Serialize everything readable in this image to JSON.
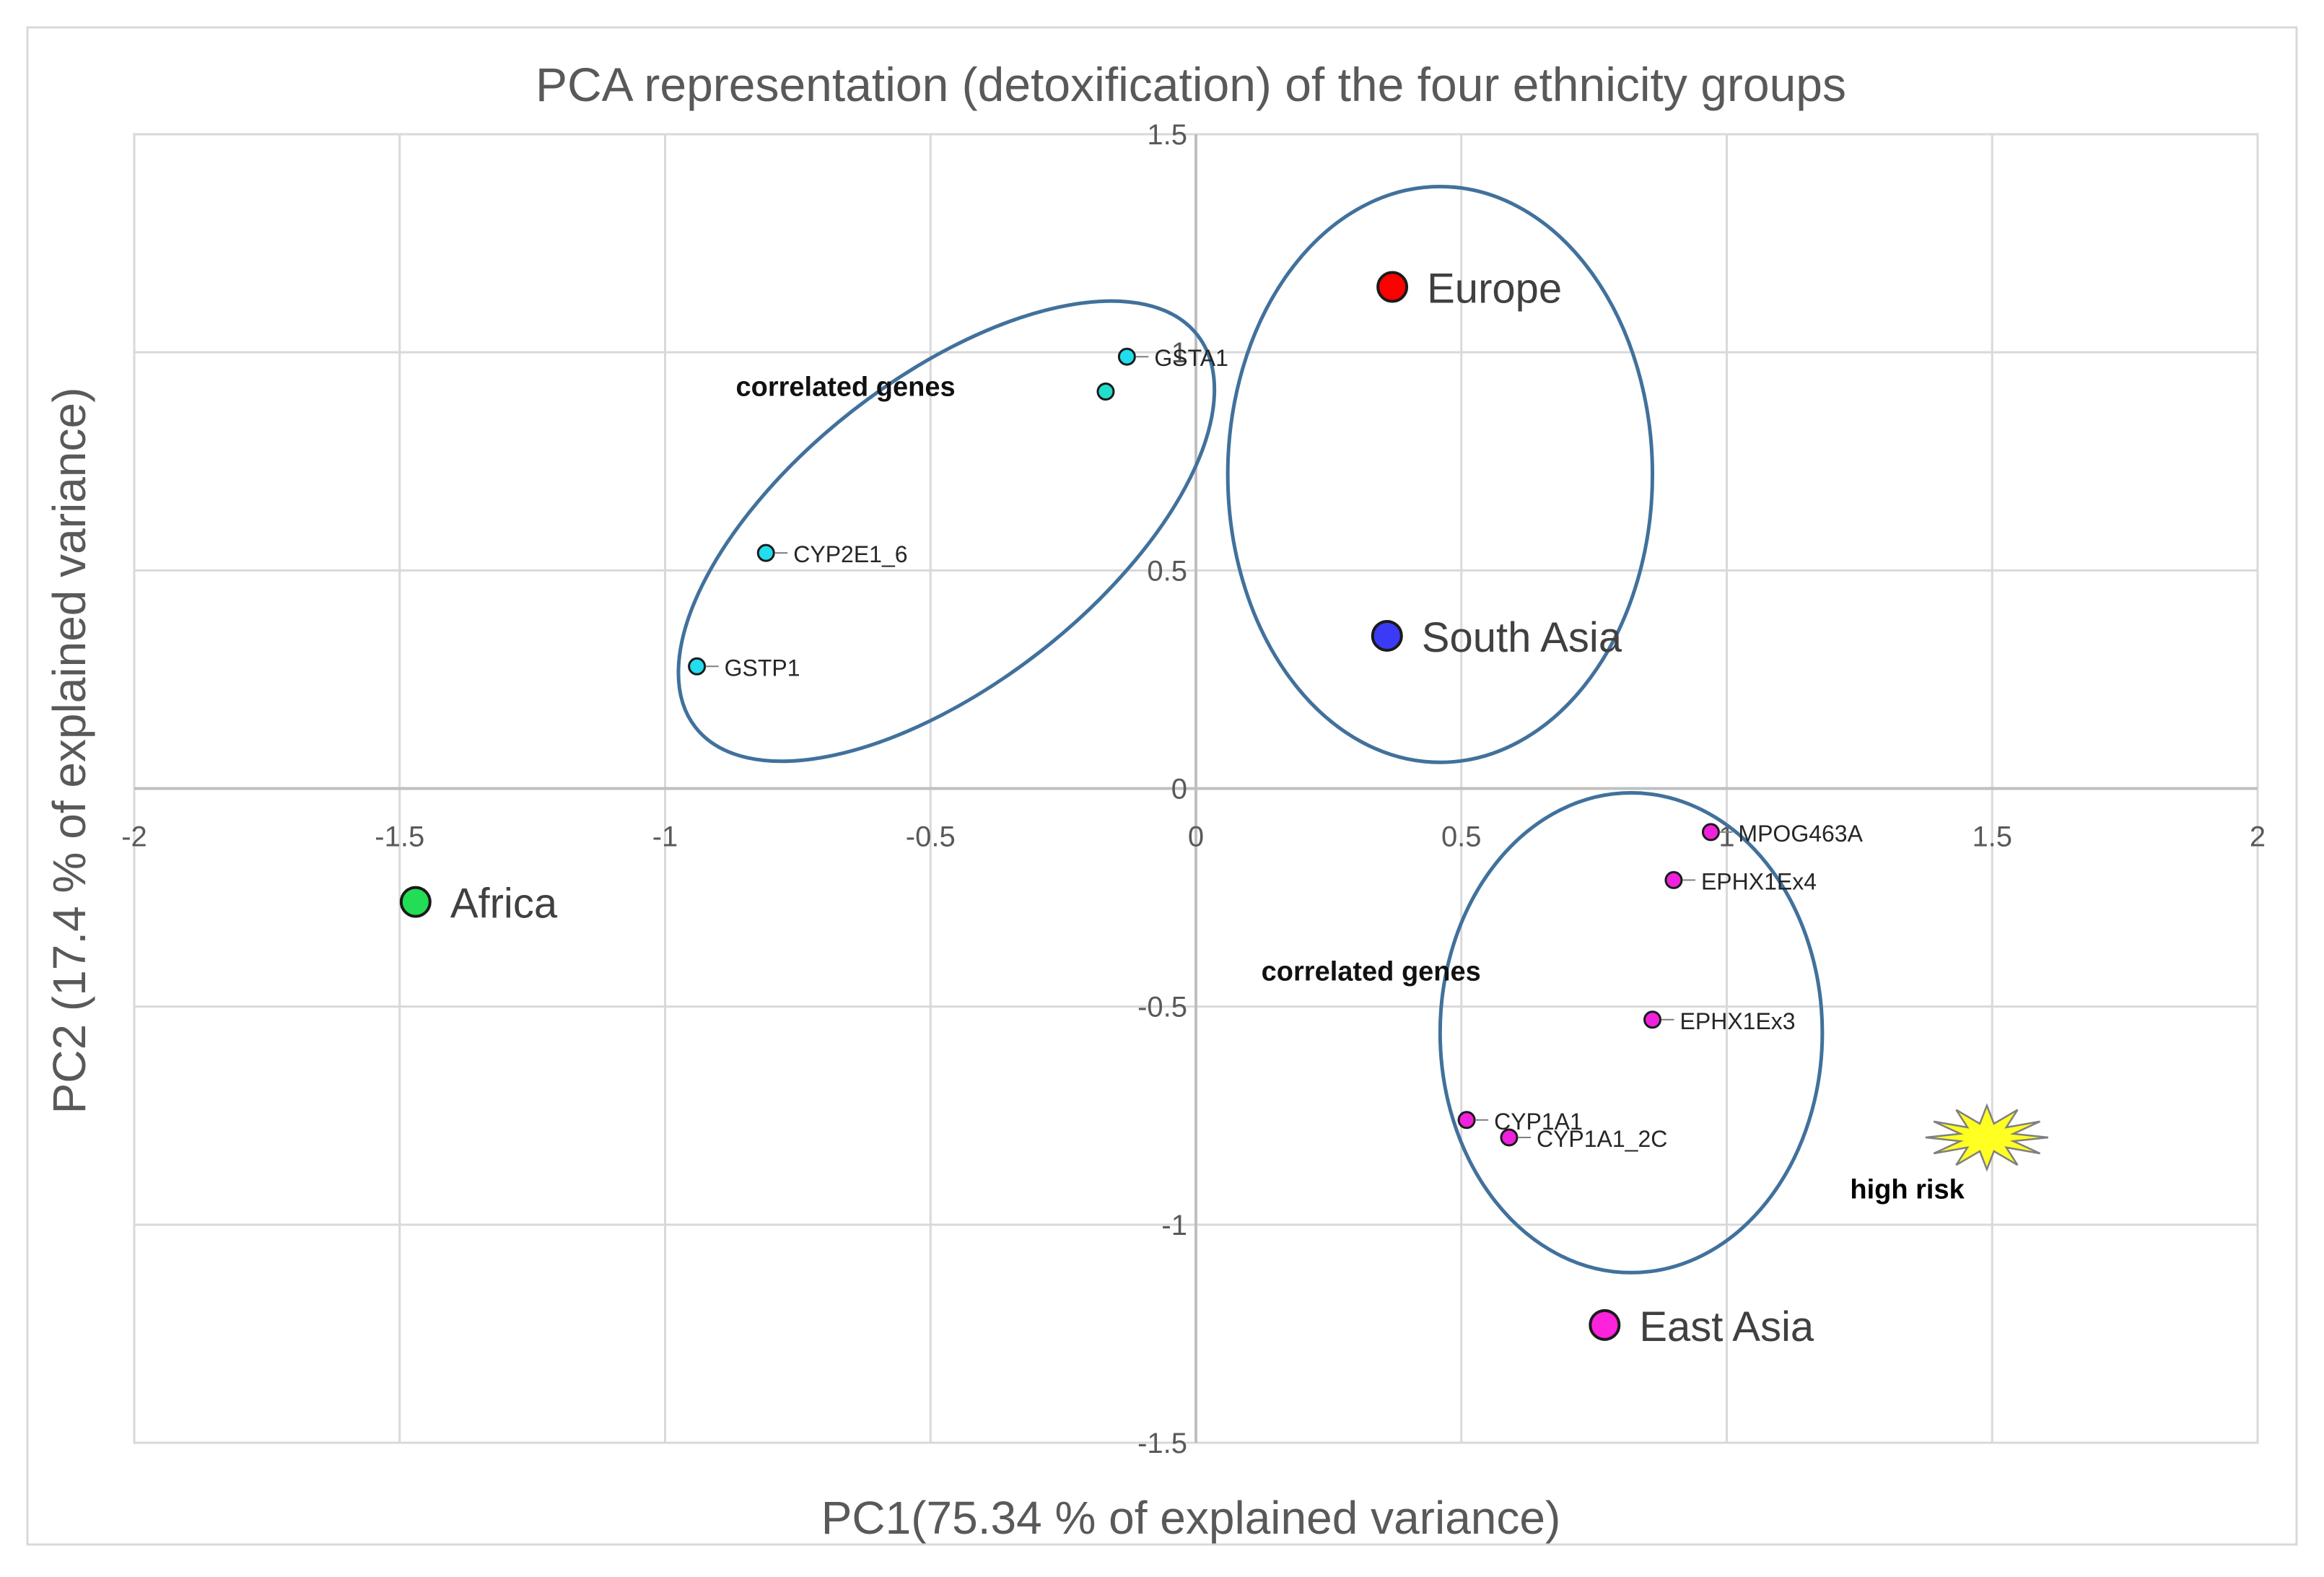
{
  "chart_data": {
    "type": "scatter",
    "title": "PCA representation (detoxification) of the four ethnicity groups",
    "xlabel": "PC1(75.34 % of explained variance)",
    "ylabel": "PC2 (17.4  % of explained variance)",
    "xlim": [
      -2,
      2
    ],
    "ylim": [
      -1.5,
      1.5
    ],
    "grid": true,
    "x_ticks": [
      -2,
      -1.5,
      -1,
      -0.5,
      0,
      0.5,
      1,
      1.5,
      2
    ],
    "x_tick_labels": [
      "-2",
      "-1.5",
      "-1",
      "-0.5",
      "0",
      "0.5",
      "1",
      "1.5",
      "2"
    ],
    "y_ticks": [
      1.5,
      1,
      0.5,
      0,
      -0.5,
      -1,
      -1.5
    ],
    "y_tick_labels": [
      "1.5",
      "1",
      "0.5",
      "0",
      "-0.5",
      "-1",
      "-1.5"
    ],
    "groups": [
      {
        "name": "Europe",
        "x": 0.37,
        "y": 1.15,
        "color": "#ff0000"
      },
      {
        "name": "South Asia",
        "x": 0.36,
        "y": 0.35,
        "color": "#3b3bf5"
      },
      {
        "name": "Africa",
        "x": -1.47,
        "y": -0.26,
        "color": "#22dd55"
      },
      {
        "name": "East Asia",
        "x": 0.77,
        "y": -1.23,
        "color": "#ff22dd"
      }
    ],
    "genes": [
      {
        "name": "GSTA1",
        "x": -0.13,
        "y": 0.99,
        "color": "#22ddee"
      },
      {
        "name": "",
        "x": -0.17,
        "y": 0.91,
        "color": "#22ddcc"
      },
      {
        "name": "CYP2E1_6",
        "x": -0.81,
        "y": 0.54,
        "color": "#22ddee"
      },
      {
        "name": "GSTP1",
        "x": -0.94,
        "y": 0.28,
        "color": "#22ddee"
      },
      {
        "name": "MPOG463A",
        "x": 0.97,
        "y": -0.1,
        "color": "#ee22dd"
      },
      {
        "name": "EPHX1Ex4",
        "x": 0.9,
        "y": -0.21,
        "color": "#ee22dd"
      },
      {
        "name": "EPHX1Ex3",
        "x": 0.86,
        "y": -0.53,
        "color": "#ee22dd"
      },
      {
        "name": "CYP1A1",
        "x": 0.51,
        "y": -0.76,
        "color": "#ee22dd"
      },
      {
        "name": "CYP1A1_2C",
        "x": 0.59,
        "y": -0.8,
        "color": "#ee22dd"
      }
    ],
    "clusters": [
      {
        "label": "correlated genes",
        "center": [
          -0.47,
          0.59
        ],
        "radii": [
          0.6,
          0.35
        ],
        "rotation_deg": 38
      },
      {
        "label": "",
        "center": [
          0.46,
          0.72
        ],
        "radii": [
          0.4,
          0.66
        ],
        "rotation_deg": 0
      },
      {
        "label": "correlated genes",
        "center": [
          0.82,
          -0.56
        ],
        "radii": [
          0.36,
          0.55
        ],
        "rotation_deg": 0
      }
    ],
    "annotations": [
      {
        "text": "high risk",
        "x": 1.34,
        "y": -0.94,
        "marker": "star-burst",
        "marker_x": 1.49,
        "marker_y": -0.8,
        "marker_color": "#ffff22"
      }
    ],
    "colors": {
      "grid": "#d9d9d9",
      "ellipse": "#41719c",
      "axis_text": "#595959",
      "border": "#d9d9d9",
      "marker_stroke": "#1a1a1a"
    }
  }
}
